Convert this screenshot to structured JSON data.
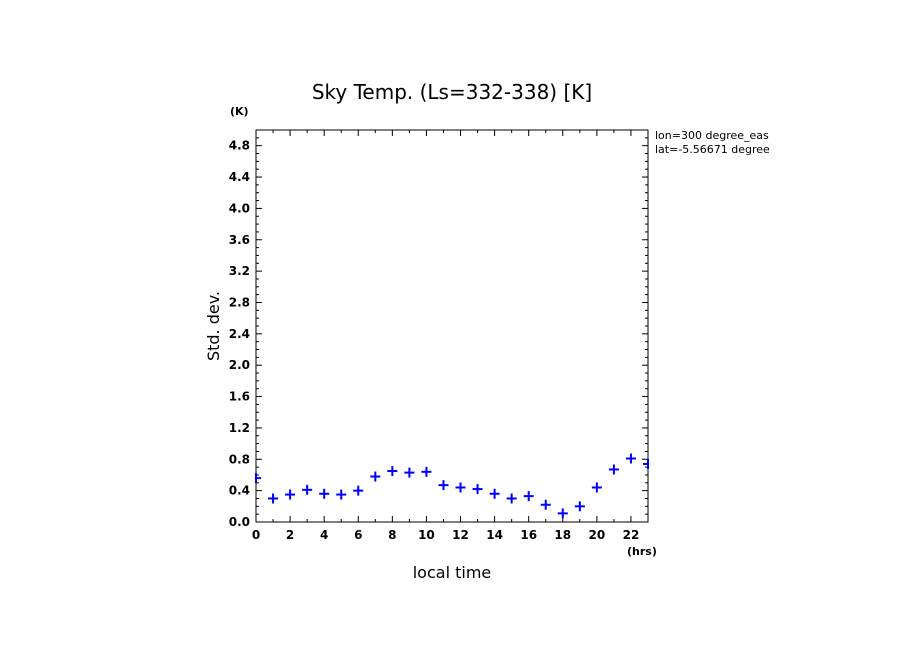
{
  "chart_data": {
    "type": "scatter",
    "title": "Sky Temp. (Ls=332-338) [K]",
    "xlabel": "local time",
    "ylabel": "Std. dev.",
    "x_unit": "(hrs)",
    "y_unit": "(K)",
    "xlim": [
      0,
      23
    ],
    "ylim": [
      0,
      5.0
    ],
    "x_ticks": [
      0,
      2,
      4,
      6,
      8,
      10,
      12,
      14,
      16,
      18,
      20,
      22
    ],
    "y_ticks": [
      0.0,
      0.4,
      0.8,
      1.2,
      1.6,
      2.0,
      2.4,
      2.8,
      3.2,
      3.6,
      4.0,
      4.4,
      4.8
    ],
    "y_tick_labels": [
      "0.0",
      "0.4",
      "0.8",
      "1.2",
      "1.6",
      "2.0",
      "2.4",
      "2.8",
      "3.2",
      "3.6",
      "4.0",
      "4.4",
      "4.8"
    ],
    "annotations": [
      "lon=300 degree_eas",
      "lat=-5.56671 degree"
    ],
    "marker_color": "#0000ff",
    "grid": false,
    "series": [
      {
        "x": [
          0,
          1,
          2,
          3,
          4,
          5,
          6,
          7,
          8,
          9,
          10,
          11,
          12,
          13,
          14,
          15,
          16,
          17,
          18,
          19,
          20,
          21,
          22,
          23
        ],
        "values": [
          0.56,
          0.3,
          0.35,
          0.41,
          0.36,
          0.35,
          0.4,
          0.58,
          0.65,
          0.63,
          0.64,
          0.47,
          0.44,
          0.42,
          0.36,
          0.3,
          0.33,
          0.22,
          0.11,
          0.2,
          0.44,
          0.67,
          0.81,
          0.74
        ]
      }
    ]
  }
}
